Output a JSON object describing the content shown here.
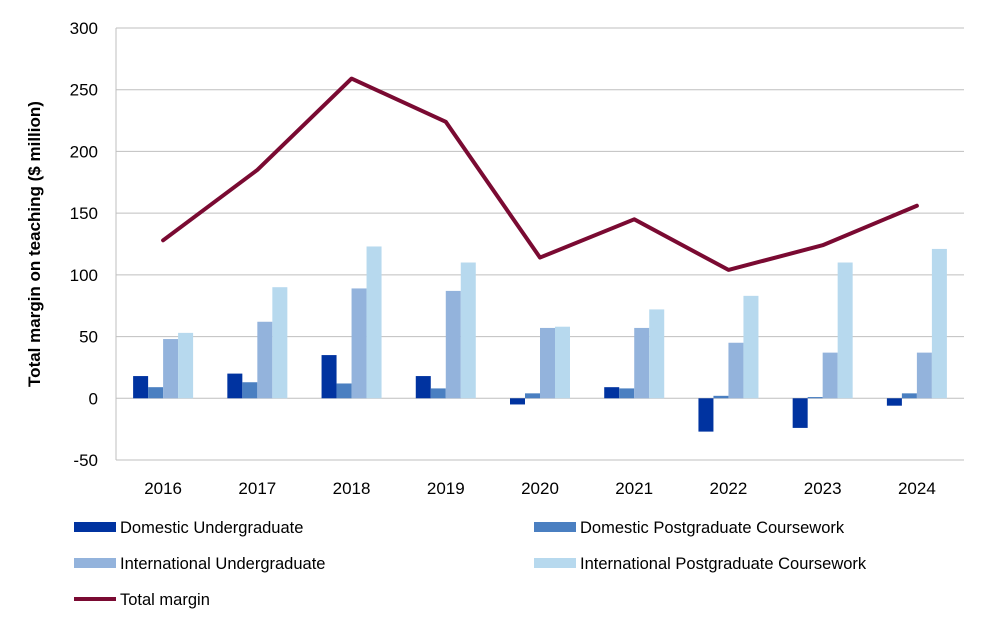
{
  "chart_data": {
    "type": "bar",
    "title": "",
    "xlabel": "",
    "ylabel": "Total margin on teaching ($ million)",
    "ylim": [
      -50,
      300
    ],
    "yticks": [
      -50,
      0,
      50,
      100,
      150,
      200,
      250,
      300
    ],
    "grid": true,
    "legend_position": "bottom",
    "categories": [
      "2016",
      "2017",
      "2018",
      "2019",
      "2020",
      "2021",
      "2022",
      "2023",
      "2024"
    ],
    "series": [
      {
        "name": "Domestic Undergraduate",
        "type": "bar",
        "color": "#0033a0",
        "values": [
          18,
          20,
          35,
          18,
          -5,
          9,
          -27,
          -24,
          -6
        ]
      },
      {
        "name": "Domestic Postgraduate Coursework",
        "type": "bar",
        "color": "#4a7fc1",
        "values": [
          9,
          13,
          12,
          8,
          4,
          8,
          2,
          1,
          4
        ]
      },
      {
        "name": "International Undergraduate",
        "type": "bar",
        "color": "#93b3dc",
        "values": [
          48,
          62,
          89,
          87,
          57,
          57,
          45,
          37,
          37
        ]
      },
      {
        "name": "International Postgraduate Coursework",
        "type": "bar",
        "color": "#b7d9ee",
        "values": [
          53,
          90,
          123,
          110,
          58,
          72,
          83,
          110,
          121
        ]
      },
      {
        "name": "Total margin",
        "type": "line",
        "color": "#7a0a32",
        "values": [
          128,
          185,
          259,
          224,
          114,
          145,
          104,
          124,
          156
        ]
      }
    ]
  }
}
